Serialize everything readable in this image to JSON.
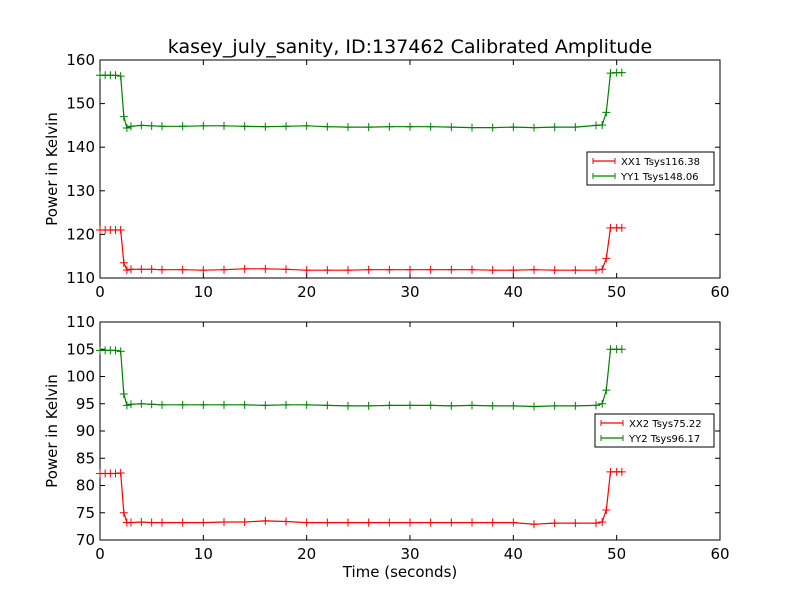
{
  "title": "kasey_july_sanity, ID:137462 Calibrated Amplitude",
  "colors": {
    "xx": "#ff0000",
    "yy": "#008000"
  },
  "chart_data": [
    {
      "type": "line",
      "xlabel": "",
      "ylabel": "Power in Kelvin",
      "xlim": [
        0,
        60
      ],
      "ylim": [
        110,
        160
      ],
      "xticks": [
        0,
        10,
        20,
        30,
        40,
        50,
        60
      ],
      "yticks": [
        110,
        120,
        130,
        140,
        150,
        160
      ],
      "legend_position": "center-right",
      "series": [
        {
          "name": "XX1 Tsys116.38",
          "color": "#ff0000",
          "x": [
            0,
            0.5,
            1,
            1.5,
            2,
            2.3,
            2.6,
            3,
            4,
            5,
            6,
            8,
            10,
            12,
            14,
            16,
            18,
            20,
            22,
            24,
            26,
            28,
            30,
            32,
            34,
            36,
            38,
            40,
            42,
            44,
            46,
            48,
            48.6,
            49,
            49.4,
            50,
            50.5
          ],
          "y": [
            121,
            121,
            121,
            121,
            121,
            113.5,
            111.8,
            112,
            112,
            112,
            111.9,
            111.9,
            111.8,
            111.9,
            112.1,
            112.1,
            112.0,
            111.8,
            111.8,
            111.8,
            111.9,
            111.9,
            111.9,
            111.9,
            111.9,
            111.9,
            111.8,
            111.8,
            111.9,
            111.8,
            111.8,
            111.8,
            112,
            114.5,
            121.5,
            121.5,
            121.5
          ]
        },
        {
          "name": "YY1 Tsys148.06",
          "color": "#008000",
          "x": [
            0,
            0.5,
            1,
            1.5,
            2,
            2.3,
            2.6,
            3,
            4,
            5,
            6,
            8,
            10,
            12,
            14,
            16,
            18,
            20,
            22,
            24,
            26,
            28,
            30,
            32,
            34,
            36,
            38,
            40,
            42,
            44,
            46,
            48,
            48.6,
            49,
            49.4,
            50,
            50.5
          ],
          "y": [
            156.5,
            156.5,
            156.5,
            156.5,
            156.3,
            147,
            144.4,
            144.8,
            145,
            144.9,
            144.8,
            144.8,
            144.9,
            144.9,
            144.8,
            144.7,
            144.8,
            144.9,
            144.7,
            144.6,
            144.6,
            144.7,
            144.7,
            144.7,
            144.6,
            144.5,
            144.5,
            144.6,
            144.5,
            144.6,
            144.6,
            145,
            145.1,
            148,
            157,
            157.1,
            157.1
          ]
        }
      ]
    },
    {
      "type": "line",
      "xlabel": "Time (seconds)",
      "ylabel": "Power in Kelvin",
      "xlim": [
        0,
        60
      ],
      "ylim": [
        70,
        110
      ],
      "xticks": [
        0,
        10,
        20,
        30,
        40,
        50,
        60
      ],
      "yticks": [
        70,
        75,
        80,
        85,
        90,
        95,
        100,
        105,
        110
      ],
      "legend_position": "center-right",
      "series": [
        {
          "name": "XX2 Tsys75.22",
          "color": "#ff0000",
          "x": [
            0,
            0.5,
            1,
            1.5,
            2,
            2.3,
            2.6,
            3,
            4,
            5,
            6,
            8,
            10,
            12,
            14,
            16,
            18,
            20,
            22,
            24,
            26,
            28,
            30,
            32,
            34,
            36,
            38,
            40,
            42,
            44,
            46,
            48,
            48.6,
            49,
            49.4,
            50,
            50.5
          ],
          "y": [
            82.2,
            82.2,
            82.2,
            82.2,
            82.3,
            75,
            73.2,
            73.2,
            73.3,
            73.2,
            73.2,
            73.2,
            73.2,
            73.3,
            73.3,
            73.5,
            73.4,
            73.2,
            73.2,
            73.2,
            73.2,
            73.2,
            73.2,
            73.2,
            73.2,
            73.2,
            73.2,
            73.2,
            72.9,
            73.1,
            73.1,
            73.1,
            73.3,
            75.5,
            82.5,
            82.5,
            82.5
          ]
        },
        {
          "name": "YY2 Tsys96.17",
          "color": "#008000",
          "x": [
            0,
            0.5,
            1,
            1.5,
            2,
            2.3,
            2.6,
            3,
            4,
            5,
            6,
            8,
            10,
            12,
            14,
            16,
            18,
            20,
            22,
            24,
            26,
            28,
            30,
            32,
            34,
            36,
            38,
            40,
            42,
            44,
            46,
            48,
            48.6,
            49,
            49.4,
            50,
            50.5
          ],
          "y": [
            104.8,
            104.8,
            104.8,
            104.8,
            104.6,
            96.8,
            94.7,
            94.9,
            95,
            94.9,
            94.8,
            94.8,
            94.8,
            94.8,
            94.8,
            94.7,
            94.8,
            94.8,
            94.7,
            94.6,
            94.6,
            94.7,
            94.7,
            94.7,
            94.6,
            94.7,
            94.6,
            94.6,
            94.5,
            94.6,
            94.6,
            94.7,
            95,
            97.5,
            105,
            105,
            105
          ]
        }
      ]
    }
  ]
}
